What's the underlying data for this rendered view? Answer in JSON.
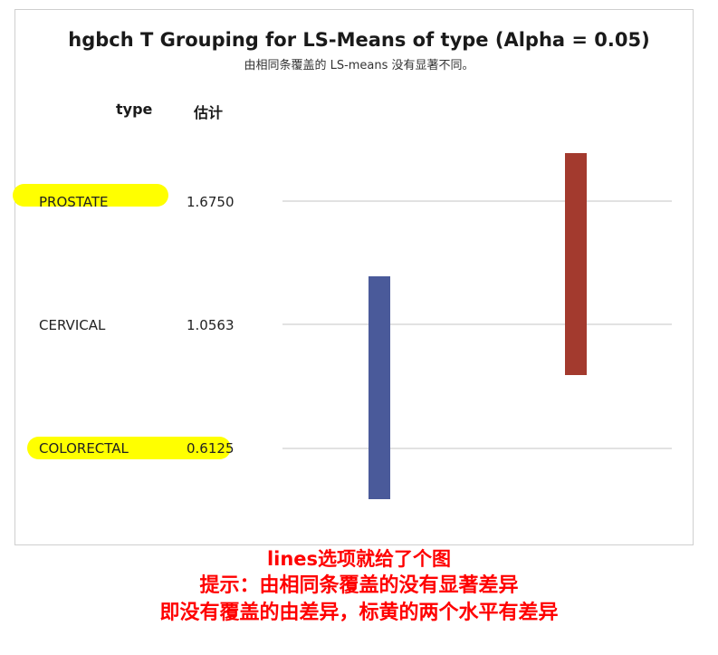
{
  "chart_data": {
    "type": "lines",
    "title": "hgbch T Grouping for LS-Means of type (Alpha = 0.05)",
    "subtitle": "由相同条覆盖的 LS-means 没有显著不同。",
    "column_headers": {
      "type": "type",
      "estimate": "估计"
    },
    "categories": [
      "PROSTATE",
      "CERVICAL",
      "COLORECTAL"
    ],
    "estimates": [
      "1.6750",
      "1.0563",
      "0.6125"
    ],
    "highlighted": [
      "PROSTATE",
      "COLORECTAL"
    ],
    "highlight_color": "#ffff00",
    "groups": [
      {
        "color": "#4a5a9a",
        "covers": [
          "CERVICAL",
          "COLORECTAL"
        ]
      },
      {
        "color": "#a33a2e",
        "covers": [
          "PROSTATE",
          "CERVICAL"
        ]
      }
    ]
  },
  "annotation": {
    "lines": [
      "lines选项就给了个图",
      "提示：由相同条覆盖的没有显著差异",
      "即没有覆盖的由差异，标黄的两个水平有差异"
    ],
    "color": "#ff0000"
  }
}
